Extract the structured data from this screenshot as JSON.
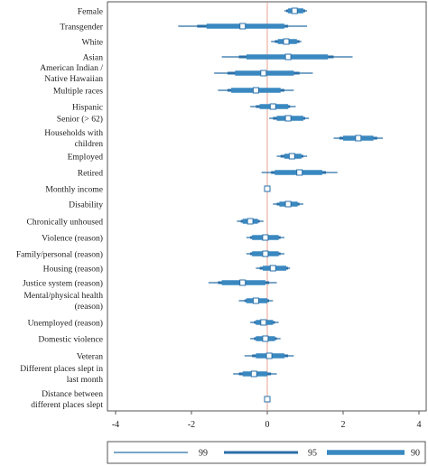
{
  "chart_data": {
    "type": "interval",
    "title": "",
    "xlabel": "",
    "ylabel": "",
    "xlim": [
      -4.4,
      4.0
    ],
    "xticks": [
      -4,
      -2,
      0,
      2,
      4
    ],
    "xtick_labels": [
      "-4",
      "-2",
      "0",
      "2",
      "4"
    ],
    "reference_line": 0,
    "legend_position": "bottom",
    "legend": [
      "99",
      "95",
      "90"
    ],
    "colors": {
      "band_99": "#2a6fa8",
      "band_95": "#2a6fa8",
      "band_90": "#3a88c0",
      "marker_fill": "#ffffff",
      "marker_stroke": "#2a6fa8",
      "reference_line": "#e8a090",
      "axis": "#555555"
    },
    "rows": [
      {
        "label": [
          "Female"
        ],
        "estimate": 0.72,
        "ci99": [
          0.45,
          1.05
        ],
        "ci95": [
          0.5,
          1.0
        ],
        "ci90": [
          0.55,
          0.95
        ]
      },
      {
        "label": [
          "Transgender"
        ],
        "estimate": -0.65,
        "ci99": [
          -2.35,
          1.05
        ],
        "ci95": [
          -1.85,
          0.55
        ],
        "ci90": [
          -1.6,
          0.45
        ]
      },
      {
        "label": [
          "White"
        ],
        "estimate": 0.5,
        "ci99": [
          0.1,
          0.9
        ],
        "ci95": [
          0.2,
          0.85
        ],
        "ci90": [
          0.28,
          0.78
        ]
      },
      {
        "label": [
          "Asian"
        ],
        "estimate": 0.55,
        "ci99": [
          -1.2,
          2.25
        ],
        "ci95": [
          -0.75,
          1.75
        ],
        "ci90": [
          -0.55,
          1.6
        ]
      },
      {
        "label": [
          "American Indian /",
          "Native Hawaiian"
        ],
        "estimate": -0.1,
        "ci99": [
          -1.4,
          1.2
        ],
        "ci95": [
          -1.05,
          0.85
        ],
        "ci90": [
          -0.85,
          0.7
        ]
      },
      {
        "label": [
          "Multiple races"
        ],
        "estimate": -0.3,
        "ci99": [
          -1.3,
          0.7
        ],
        "ci95": [
          -1.05,
          0.45
        ],
        "ci90": [
          -0.95,
          0.35
        ]
      },
      {
        "label": [
          "Hispanic"
        ],
        "estimate": 0.15,
        "ci99": [
          -0.45,
          0.75
        ],
        "ci95": [
          -0.3,
          0.6
        ],
        "ci90": [
          -0.2,
          0.55
        ]
      },
      {
        "label": [
          "Senior (> 62)"
        ],
        "estimate": 0.55,
        "ci99": [
          0.05,
          1.1
        ],
        "ci95": [
          0.15,
          1.0
        ],
        "ci90": [
          0.25,
          0.95
        ]
      },
      {
        "label": [
          "Households with",
          "children"
        ],
        "estimate": 2.4,
        "ci99": [
          1.75,
          3.05
        ],
        "ci95": [
          1.9,
          2.9
        ],
        "ci90": [
          2.0,
          2.8
        ]
      },
      {
        "label": [
          "Employed"
        ],
        "estimate": 0.65,
        "ci99": [
          0.25,
          1.05
        ],
        "ci95": [
          0.35,
          0.95
        ],
        "ci90": [
          0.45,
          0.9
        ]
      },
      {
        "label": [
          "Retired"
        ],
        "estimate": 0.85,
        "ci99": [
          -0.15,
          1.85
        ],
        "ci95": [
          0.1,
          1.55
        ],
        "ci90": [
          0.2,
          1.45
        ]
      },
      {
        "label": [
          "Monthly income"
        ],
        "estimate": 0.0,
        "ci99": [
          0.0,
          0.0
        ],
        "ci95": [
          0.0,
          0.0
        ],
        "ci90": [
          0.0,
          0.0
        ]
      },
      {
        "label": [
          "Disability"
        ],
        "estimate": 0.55,
        "ci99": [
          0.15,
          0.95
        ],
        "ci95": [
          0.25,
          0.85
        ],
        "ci90": [
          0.32,
          0.8
        ]
      },
      {
        "label": [
          "Chronically unhoused"
        ],
        "estimate": -0.45,
        "ci99": [
          -0.8,
          -0.1
        ],
        "ci95": [
          -0.7,
          -0.2
        ],
        "ci90": [
          -0.65,
          -0.25
        ]
      },
      {
        "label": [
          "Violence (reason)"
        ],
        "estimate": -0.05,
        "ci99": [
          -0.55,
          0.45
        ],
        "ci95": [
          -0.45,
          0.35
        ],
        "ci90": [
          -0.4,
          0.3
        ]
      },
      {
        "label": [
          "Family/personal (reason)"
        ],
        "estimate": -0.05,
        "ci99": [
          -0.55,
          0.45
        ],
        "ci95": [
          -0.45,
          0.35
        ],
        "ci90": [
          -0.4,
          0.3
        ]
      },
      {
        "label": [
          "Housing (reason)"
        ],
        "estimate": 0.15,
        "ci99": [
          -0.3,
          0.6
        ],
        "ci95": [
          -0.2,
          0.55
        ],
        "ci90": [
          -0.12,
          0.5
        ]
      },
      {
        "label": [
          "Justice system (reason)"
        ],
        "estimate": -0.65,
        "ci99": [
          -1.55,
          0.25
        ],
        "ci95": [
          -1.3,
          0.05
        ],
        "ci90": [
          -1.2,
          -0.05
        ]
      },
      {
        "label": [
          "Mental/physical health",
          "(reason)"
        ],
        "estimate": -0.3,
        "ci99": [
          -0.75,
          0.15
        ],
        "ci95": [
          -0.6,
          0.05
        ],
        "ci90": [
          -0.55,
          0.0
        ]
      },
      {
        "label": [
          "Unemployed (reason)"
        ],
        "estimate": -0.1,
        "ci99": [
          -0.45,
          0.3
        ],
        "ci95": [
          -0.35,
          0.2
        ],
        "ci90": [
          -0.3,
          0.15
        ]
      },
      {
        "label": [
          "Domestic violence"
        ],
        "estimate": -0.05,
        "ci99": [
          -0.45,
          0.35
        ],
        "ci95": [
          -0.35,
          0.25
        ],
        "ci90": [
          -0.3,
          0.2
        ]
      },
      {
        "label": [
          "Veteran"
        ],
        "estimate": 0.05,
        "ci99": [
          -0.6,
          0.7
        ],
        "ci95": [
          -0.4,
          0.55
        ],
        "ci90": [
          -0.3,
          0.45
        ]
      },
      {
        "label": [
          "Different places slept in",
          "last month"
        ],
        "estimate": -0.35,
        "ci99": [
          -0.9,
          0.25
        ],
        "ci95": [
          -0.75,
          0.1
        ],
        "ci90": [
          -0.65,
          0.0
        ]
      },
      {
        "label": [
          "Distance between",
          "different places slept"
        ],
        "estimate": 0.0,
        "ci99": [
          0.0,
          0.0
        ],
        "ci95": [
          0.0,
          0.0
        ],
        "ci90": [
          0.0,
          0.0
        ]
      }
    ]
  }
}
